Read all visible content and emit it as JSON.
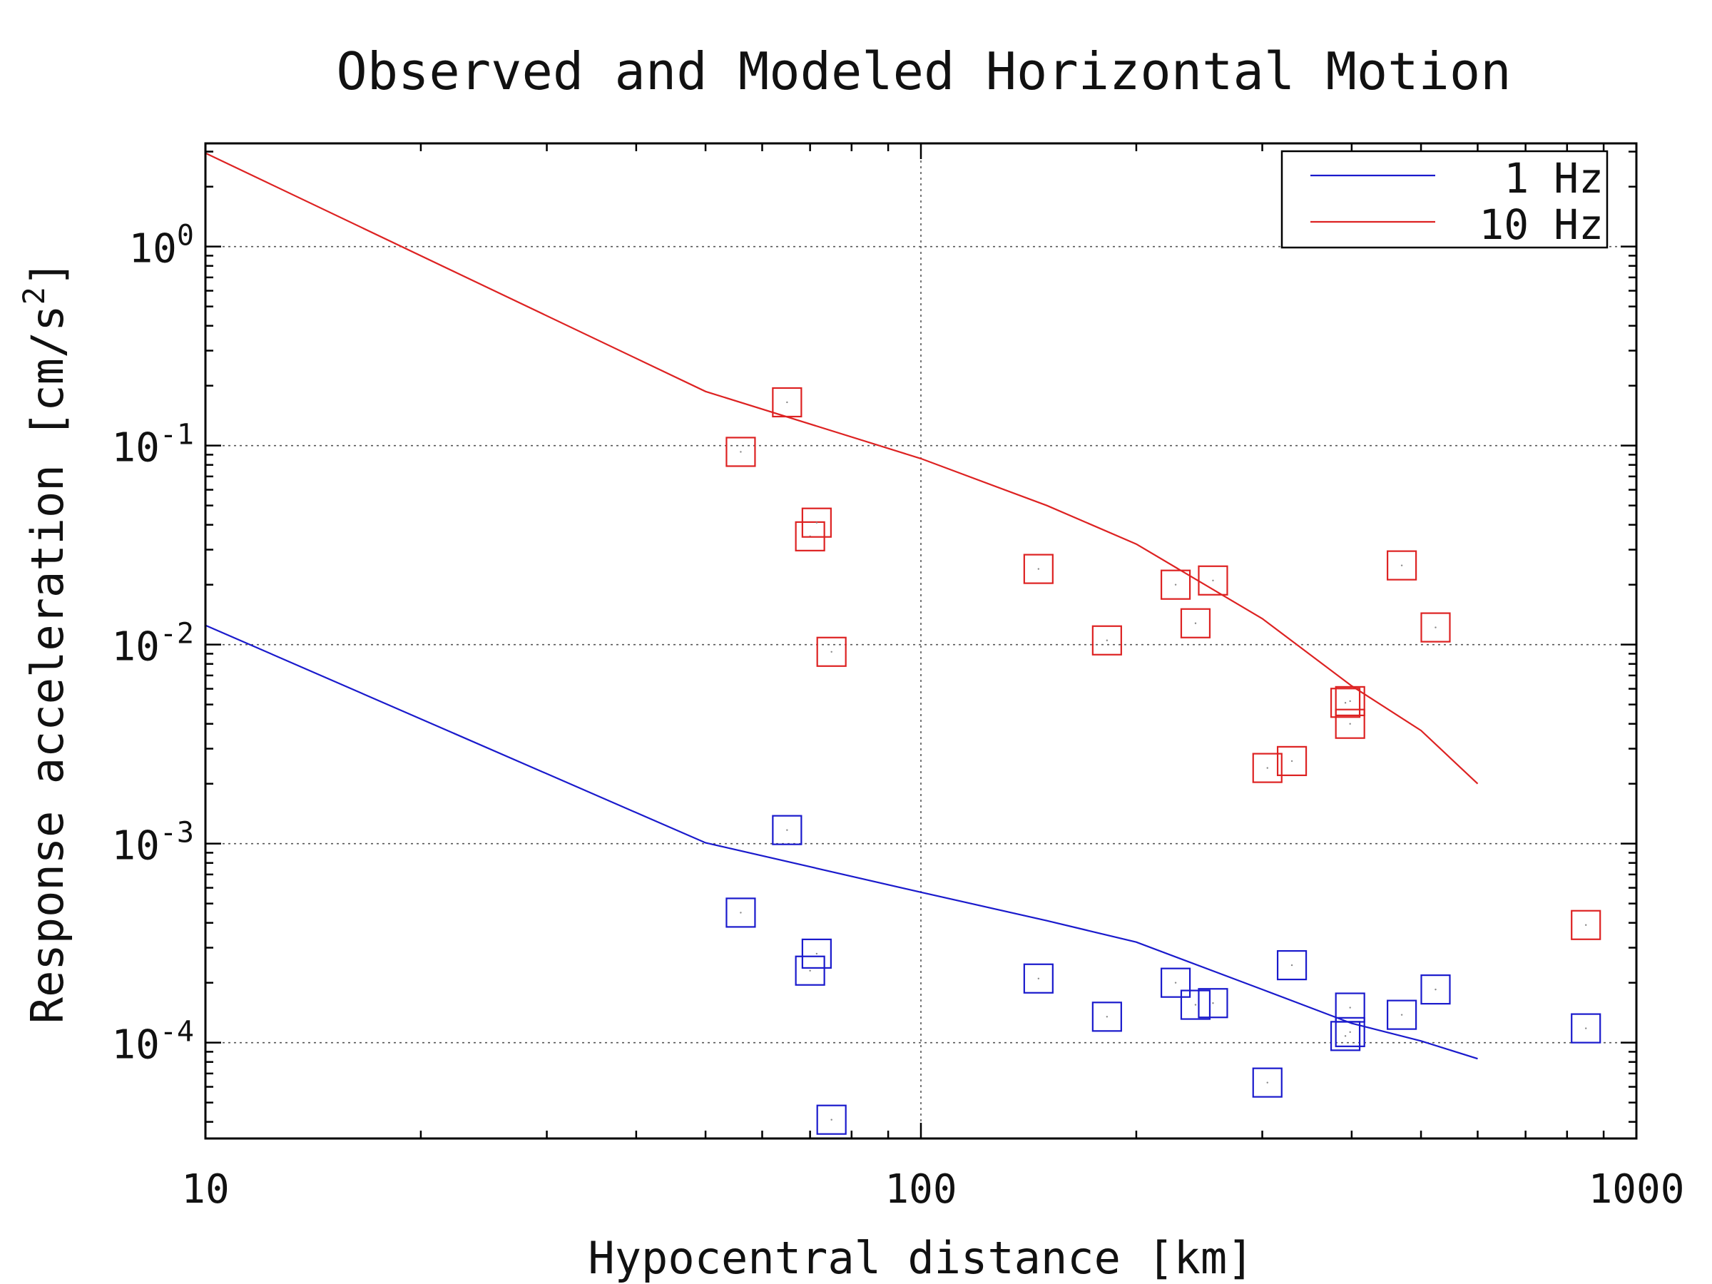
{
  "chart_data": {
    "type": "scatter",
    "title": "Observed and Modeled Horizontal Motion",
    "xlabel": "Hypocentral distance [km]",
    "ylabel": "Response acceleration [cm/s",
    "ylabel_superscript": "2",
    "ylabel_suffix": "]",
    "x_scale": "log",
    "y_scale": "log",
    "xlim": [
      10,
      1000
    ],
    "ylim": [
      3.3e-05,
      3.3
    ],
    "x_ticks": [
      {
        "value": 10,
        "label": "10"
      },
      {
        "value": 100,
        "label": "100"
      },
      {
        "value": 1000,
        "label": "1000"
      }
    ],
    "y_ticks": [
      {
        "value": 0.0001,
        "base": "10",
        "exp": "-4"
      },
      {
        "value": 0.001,
        "base": "10",
        "exp": "-3"
      },
      {
        "value": 0.01,
        "base": "10",
        "exp": "-2"
      },
      {
        "value": 0.1,
        "base": "10",
        "exp": "-1"
      },
      {
        "value": 1,
        "base": "10",
        "exp": "0"
      }
    ],
    "grid": true,
    "legend_position": "top-right",
    "series": [
      {
        "name": "1 Hz",
        "color": "#1a1acc",
        "model_x": [
          10,
          50,
          100,
          150,
          200,
          300,
          400,
          500,
          600
        ],
        "model_y": [
          0.0125,
          0.00101,
          0.00057,
          0.00041,
          0.00032,
          0.000185,
          0.000125,
          0.000102,
          8.3e-05
        ],
        "observed": [
          {
            "x": 56,
            "y": 0.00045
          },
          {
            "x": 65,
            "y": 0.00117
          },
          {
            "x": 70,
            "y": 0.00023
          },
          {
            "x": 71.5,
            "y": 0.00028
          },
          {
            "x": 75,
            "y": 4.1e-05
          },
          {
            "x": 146,
            "y": 0.00021
          },
          {
            "x": 182,
            "y": 0.000135
          },
          {
            "x": 227,
            "y": 0.0002
          },
          {
            "x": 242,
            "y": 0.000155
          },
          {
            "x": 256,
            "y": 0.000158
          },
          {
            "x": 305,
            "y": 6.3e-05
          },
          {
            "x": 330,
            "y": 0.000245
          },
          {
            "x": 392,
            "y": 0.000108
          },
          {
            "x": 398,
            "y": 0.00015
          },
          {
            "x": 398,
            "y": 0.000113
          },
          {
            "x": 470,
            "y": 0.000138
          },
          {
            "x": 524,
            "y": 0.000185
          },
          {
            "x": 850,
            "y": 0.000118
          }
        ]
      },
      {
        "name": "10 Hz",
        "color": "#dd2222",
        "model_x": [
          10,
          50,
          100,
          150,
          200,
          300,
          400,
          500,
          600
        ],
        "model_y": [
          2.95,
          0.187,
          0.086,
          0.05,
          0.032,
          0.0135,
          0.0062,
          0.0037,
          0.002
        ],
        "observed": [
          {
            "x": 56,
            "y": 0.093
          },
          {
            "x": 65,
            "y": 0.165
          },
          {
            "x": 70,
            "y": 0.035
          },
          {
            "x": 71.5,
            "y": 0.041
          },
          {
            "x": 75,
            "y": 0.0092
          },
          {
            "x": 146,
            "y": 0.024
          },
          {
            "x": 182,
            "y": 0.0105
          },
          {
            "x": 227,
            "y": 0.02
          },
          {
            "x": 242,
            "y": 0.0128
          },
          {
            "x": 256,
            "y": 0.021
          },
          {
            "x": 305,
            "y": 0.0024
          },
          {
            "x": 330,
            "y": 0.0026
          },
          {
            "x": 392,
            "y": 0.0051
          },
          {
            "x": 398,
            "y": 0.004
          },
          {
            "x": 398,
            "y": 0.0052
          },
          {
            "x": 470,
            "y": 0.025
          },
          {
            "x": 524,
            "y": 0.0122
          },
          {
            "x": 850,
            "y": 0.00039
          }
        ]
      }
    ]
  }
}
